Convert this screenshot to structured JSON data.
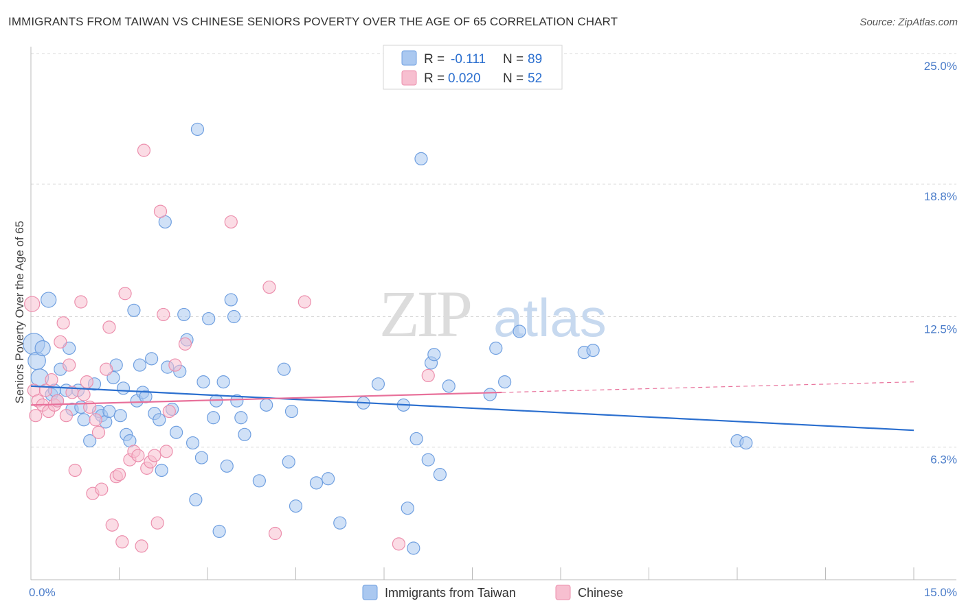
{
  "header": {
    "title": "IMMIGRANTS FROM TAIWAN VS CHINESE SENIORS POVERTY OVER THE AGE OF 65 CORRELATION CHART",
    "source": "Source: ZipAtlas.com"
  },
  "watermark": {
    "zip": "ZIP",
    "atlas": "atlas"
  },
  "legend": {
    "rows": [
      {
        "r_label": "R =",
        "r_value": "-0.111",
        "n_label": "N =",
        "n_value": "89"
      },
      {
        "r_label": "R =",
        "r_value": "0.020",
        "n_label": "N =",
        "n_value": "52"
      }
    ]
  },
  "colors": {
    "taiwan_fill": "#aac8f0",
    "taiwan_stroke": "#6f9fe0",
    "taiwan_line": "#2b6fcf",
    "chinese_fill": "#f7bfd0",
    "chinese_stroke": "#ec8fad",
    "chinese_line": "#e8709a",
    "grid": "#d8d8d8",
    "tick_text": "#4a7cc9"
  },
  "chart_data": {
    "type": "scatter",
    "title": "IMMIGRANTS FROM TAIWAN VS CHINESE SENIORS POVERTY OVER THE AGE OF 65 CORRELATION CHART",
    "xlabel": "",
    "ylabel": "Seniors Poverty Over the Age of 65",
    "xlim": [
      0,
      15
    ],
    "ylim": [
      0,
      25
    ],
    "x_tick_labels": [
      "0.0%",
      "15.0%"
    ],
    "y_ticks": [
      6.3,
      12.5,
      18.8,
      25.0
    ],
    "y_tick_labels": [
      "6.3%",
      "12.5%",
      "18.8%",
      "25.0%"
    ],
    "grid": true,
    "legend_position": "top-center",
    "series": [
      {
        "name": "Immigrants from Taiwan",
        "r": -0.111,
        "n": 89,
        "trend": {
          "x": [
            0,
            15
          ],
          "y": [
            9.2,
            7.1
          ]
        },
        "points": [
          {
            "x": 0.05,
            "y": 11.2,
            "s": 3
          },
          {
            "x": 0.1,
            "y": 10.4,
            "s": 2
          },
          {
            "x": 0.15,
            "y": 9.6,
            "s": 2
          },
          {
            "x": 0.2,
            "y": 11.0,
            "s": 1.5
          },
          {
            "x": 0.3,
            "y": 13.3,
            "s": 1.5
          },
          {
            "x": 0.35,
            "y": 8.8,
            "s": 1
          },
          {
            "x": 0.4,
            "y": 9.0,
            "s": 1
          },
          {
            "x": 0.45,
            "y": 8.5,
            "s": 1
          },
          {
            "x": 0.5,
            "y": 10.0,
            "s": 1
          },
          {
            "x": 0.6,
            "y": 9.0,
            "s": 1
          },
          {
            "x": 0.65,
            "y": 11.0,
            "s": 1
          },
          {
            "x": 0.7,
            "y": 8.1,
            "s": 1
          },
          {
            "x": 0.8,
            "y": 9.0,
            "s": 1
          },
          {
            "x": 0.85,
            "y": 8.2,
            "s": 1
          },
          {
            "x": 0.9,
            "y": 7.6,
            "s": 1
          },
          {
            "x": 1.0,
            "y": 6.6,
            "s": 1
          },
          {
            "x": 1.08,
            "y": 9.3,
            "s": 1
          },
          {
            "x": 1.15,
            "y": 8.0,
            "s": 1
          },
          {
            "x": 1.2,
            "y": 7.8,
            "s": 1
          },
          {
            "x": 1.27,
            "y": 7.5,
            "s": 1
          },
          {
            "x": 1.33,
            "y": 8.0,
            "s": 1
          },
          {
            "x": 1.4,
            "y": 9.6,
            "s": 1
          },
          {
            "x": 1.45,
            "y": 10.2,
            "s": 1
          },
          {
            "x": 1.52,
            "y": 7.8,
            "s": 1
          },
          {
            "x": 1.57,
            "y": 9.1,
            "s": 1
          },
          {
            "x": 1.62,
            "y": 6.9,
            "s": 1
          },
          {
            "x": 1.68,
            "y": 6.6,
            "s": 1
          },
          {
            "x": 1.75,
            "y": 12.8,
            "s": 1
          },
          {
            "x": 1.8,
            "y": 8.5,
            "s": 1
          },
          {
            "x": 1.85,
            "y": 10.2,
            "s": 1
          },
          {
            "x": 1.9,
            "y": 8.9,
            "s": 1
          },
          {
            "x": 1.95,
            "y": 8.7,
            "s": 1
          },
          {
            "x": 2.05,
            "y": 10.5,
            "s": 1
          },
          {
            "x": 2.1,
            "y": 7.9,
            "s": 1
          },
          {
            "x": 2.18,
            "y": 7.6,
            "s": 1
          },
          {
            "x": 2.22,
            "y": 5.2,
            "s": 1
          },
          {
            "x": 2.28,
            "y": 17.0,
            "s": 1
          },
          {
            "x": 2.32,
            "y": 10.1,
            "s": 1
          },
          {
            "x": 2.4,
            "y": 8.1,
            "s": 1
          },
          {
            "x": 2.47,
            "y": 7.0,
            "s": 1
          },
          {
            "x": 2.53,
            "y": 9.9,
            "s": 1
          },
          {
            "x": 2.6,
            "y": 12.6,
            "s": 1
          },
          {
            "x": 2.65,
            "y": 11.4,
            "s": 1
          },
          {
            "x": 2.75,
            "y": 6.5,
            "s": 1
          },
          {
            "x": 2.8,
            "y": 3.8,
            "s": 1
          },
          {
            "x": 2.83,
            "y": 21.4,
            "s": 1
          },
          {
            "x": 2.9,
            "y": 5.8,
            "s": 1
          },
          {
            "x": 2.93,
            "y": 9.4,
            "s": 1
          },
          {
            "x": 3.02,
            "y": 12.4,
            "s": 1
          },
          {
            "x": 3.1,
            "y": 7.7,
            "s": 1
          },
          {
            "x": 3.15,
            "y": 8.5,
            "s": 1
          },
          {
            "x": 3.2,
            "y": 2.3,
            "s": 1
          },
          {
            "x": 3.27,
            "y": 9.4,
            "s": 1
          },
          {
            "x": 3.33,
            "y": 5.4,
            "s": 1
          },
          {
            "x": 3.4,
            "y": 13.3,
            "s": 1
          },
          {
            "x": 3.45,
            "y": 12.5,
            "s": 1
          },
          {
            "x": 3.5,
            "y": 8.5,
            "s": 1
          },
          {
            "x": 3.57,
            "y": 7.7,
            "s": 1
          },
          {
            "x": 3.63,
            "y": 6.9,
            "s": 1
          },
          {
            "x": 3.88,
            "y": 4.7,
            "s": 1
          },
          {
            "x": 4.0,
            "y": 8.3,
            "s": 1
          },
          {
            "x": 4.3,
            "y": 10.0,
            "s": 1
          },
          {
            "x": 4.38,
            "y": 5.6,
            "s": 1
          },
          {
            "x": 4.43,
            "y": 8.0,
            "s": 1
          },
          {
            "x": 4.5,
            "y": 3.5,
            "s": 1
          },
          {
            "x": 4.85,
            "y": 4.6,
            "s": 1
          },
          {
            "x": 5.05,
            "y": 4.8,
            "s": 1
          },
          {
            "x": 5.25,
            "y": 2.7,
            "s": 1
          },
          {
            "x": 5.65,
            "y": 8.4,
            "s": 1
          },
          {
            "x": 5.9,
            "y": 9.3,
            "s": 1
          },
          {
            "x": 6.33,
            "y": 8.3,
            "s": 1
          },
          {
            "x": 6.4,
            "y": 3.4,
            "s": 1
          },
          {
            "x": 6.5,
            "y": 1.5,
            "s": 1
          },
          {
            "x": 6.55,
            "y": 6.7,
            "s": 1
          },
          {
            "x": 6.63,
            "y": 20.0,
            "s": 1
          },
          {
            "x": 6.75,
            "y": 5.7,
            "s": 1
          },
          {
            "x": 6.8,
            "y": 10.3,
            "s": 1
          },
          {
            "x": 6.85,
            "y": 10.7,
            "s": 1
          },
          {
            "x": 6.95,
            "y": 5.0,
            "s": 1
          },
          {
            "x": 7.1,
            "y": 9.2,
            "s": 1
          },
          {
            "x": 7.8,
            "y": 8.8,
            "s": 1
          },
          {
            "x": 7.9,
            "y": 11.0,
            "s": 1
          },
          {
            "x": 8.05,
            "y": 9.4,
            "s": 1
          },
          {
            "x": 8.3,
            "y": 11.8,
            "s": 1
          },
          {
            "x": 9.4,
            "y": 10.8,
            "s": 1
          },
          {
            "x": 9.55,
            "y": 10.9,
            "s": 1
          },
          {
            "x": 12.0,
            "y": 6.6,
            "s": 1
          },
          {
            "x": 12.15,
            "y": 6.5,
            "s": 1
          }
        ]
      },
      {
        "name": "Chinese",
        "r": 0.02,
        "n": 52,
        "trend": {
          "x": [
            0,
            8.0
          ],
          "y": [
            8.3,
            8.9
          ]
        },
        "trend_dashed": {
          "x": [
            8.0,
            15
          ],
          "y": [
            8.9,
            9.4
          ]
        },
        "points": [
          {
            "x": 0.02,
            "y": 13.1,
            "s": 1.5
          },
          {
            "x": 0.05,
            "y": 9.0,
            "s": 1
          },
          {
            "x": 0.08,
            "y": 7.8,
            "s": 1
          },
          {
            "x": 0.12,
            "y": 8.5,
            "s": 1
          },
          {
            "x": 0.2,
            "y": 8.3,
            "s": 1
          },
          {
            "x": 0.25,
            "y": 9.0,
            "s": 1
          },
          {
            "x": 0.3,
            "y": 8.0,
            "s": 1
          },
          {
            "x": 0.35,
            "y": 9.5,
            "s": 1
          },
          {
            "x": 0.4,
            "y": 8.3,
            "s": 1
          },
          {
            "x": 0.45,
            "y": 8.5,
            "s": 1
          },
          {
            "x": 0.5,
            "y": 11.3,
            "s": 1
          },
          {
            "x": 0.55,
            "y": 12.2,
            "s": 1
          },
          {
            "x": 0.6,
            "y": 7.8,
            "s": 1
          },
          {
            "x": 0.65,
            "y": 10.2,
            "s": 1
          },
          {
            "x": 0.7,
            "y": 8.9,
            "s": 1
          },
          {
            "x": 0.75,
            "y": 5.2,
            "s": 1
          },
          {
            "x": 0.85,
            "y": 13.2,
            "s": 1
          },
          {
            "x": 0.9,
            "y": 8.8,
            "s": 1
          },
          {
            "x": 0.95,
            "y": 9.4,
            "s": 1
          },
          {
            "x": 1.0,
            "y": 8.2,
            "s": 1
          },
          {
            "x": 1.05,
            "y": 4.1,
            "s": 1
          },
          {
            "x": 1.1,
            "y": 7.6,
            "s": 1
          },
          {
            "x": 1.15,
            "y": 7.0,
            "s": 1
          },
          {
            "x": 1.2,
            "y": 4.3,
            "s": 1
          },
          {
            "x": 1.28,
            "y": 10.0,
            "s": 1
          },
          {
            "x": 1.33,
            "y": 12.0,
            "s": 1
          },
          {
            "x": 1.38,
            "y": 2.6,
            "s": 1
          },
          {
            "x": 1.45,
            "y": 4.9,
            "s": 1
          },
          {
            "x": 1.5,
            "y": 5.0,
            "s": 1
          },
          {
            "x": 1.55,
            "y": 1.8,
            "s": 1
          },
          {
            "x": 1.6,
            "y": 13.6,
            "s": 1
          },
          {
            "x": 1.68,
            "y": 5.7,
            "s": 1
          },
          {
            "x": 1.75,
            "y": 6.1,
            "s": 1
          },
          {
            "x": 1.82,
            "y": 5.9,
            "s": 1
          },
          {
            "x": 1.88,
            "y": 1.6,
            "s": 1
          },
          {
            "x": 1.92,
            "y": 20.4,
            "s": 1
          },
          {
            "x": 1.97,
            "y": 5.3,
            "s": 1
          },
          {
            "x": 2.03,
            "y": 5.6,
            "s": 1
          },
          {
            "x": 2.1,
            "y": 5.9,
            "s": 1
          },
          {
            "x": 2.15,
            "y": 2.7,
            "s": 1
          },
          {
            "x": 2.2,
            "y": 17.5,
            "s": 1
          },
          {
            "x": 2.25,
            "y": 12.6,
            "s": 1
          },
          {
            "x": 2.3,
            "y": 6.1,
            "s": 1
          },
          {
            "x": 2.35,
            "y": 8.0,
            "s": 1
          },
          {
            "x": 2.45,
            "y": 10.2,
            "s": 1
          },
          {
            "x": 2.62,
            "y": 11.2,
            "s": 1
          },
          {
            "x": 3.4,
            "y": 17.0,
            "s": 1
          },
          {
            "x": 4.05,
            "y": 13.9,
            "s": 1
          },
          {
            "x": 4.15,
            "y": 2.2,
            "s": 1
          },
          {
            "x": 4.65,
            "y": 13.2,
            "s": 1
          },
          {
            "x": 6.25,
            "y": 1.7,
            "s": 1
          },
          {
            "x": 6.75,
            "y": 9.7,
            "s": 1
          }
        ]
      }
    ]
  },
  "bottom_legend": {
    "items": [
      {
        "label": "Immigrants from Taiwan"
      },
      {
        "label": "Chinese"
      }
    ]
  }
}
